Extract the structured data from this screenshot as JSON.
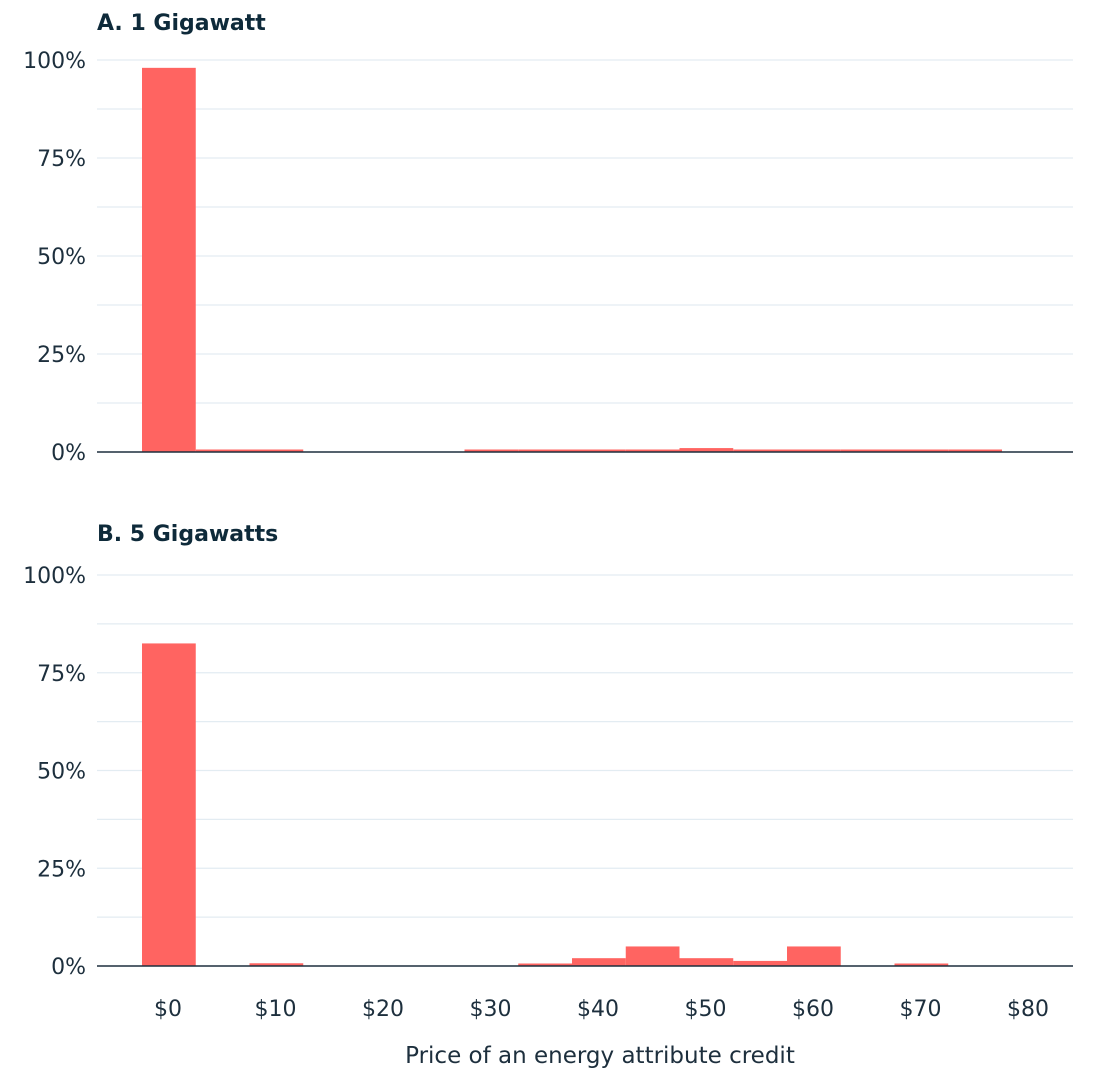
{
  "chart_data": [
    {
      "type": "bar",
      "title": "A. 1 Gigawatt",
      "bin_width": 5,
      "x": [
        0,
        5,
        10,
        15,
        20,
        25,
        30,
        35,
        40,
        45,
        50,
        55,
        60,
        65,
        70,
        75
      ],
      "values": [
        98,
        0.3,
        0.3,
        0,
        0,
        0,
        0.2,
        0.2,
        0.2,
        0.2,
        1.0,
        0.3,
        0.3,
        0.3,
        0.3,
        0.3
      ],
      "ylim": [
        0,
        100
      ],
      "yticks": [
        "0%",
        "25%",
        "50%",
        "75%",
        "100%"
      ],
      "color": "#ff6461",
      "grid": true
    },
    {
      "type": "bar",
      "title": "B. 5 Gigawatts",
      "bin_width": 5,
      "x": [
        0,
        5,
        10,
        15,
        20,
        25,
        30,
        35,
        40,
        45,
        50,
        55,
        60,
        65,
        70,
        75
      ],
      "values": [
        82.5,
        0,
        0.7,
        0,
        0,
        0,
        0,
        0.5,
        2.0,
        5.0,
        2.0,
        1.3,
        5.0,
        0,
        0.5,
        0
      ],
      "ylim": [
        0,
        100
      ],
      "yticks": [
        "0%",
        "25%",
        "50%",
        "75%",
        "100%"
      ],
      "color": "#ff6461",
      "grid": true
    }
  ],
  "shared_x_axis": {
    "ticks": [
      "$0",
      "$10",
      "$20",
      "$30",
      "$40",
      "$50",
      "$60",
      "$70",
      "$80"
    ],
    "tick_values": [
      0,
      10,
      20,
      30,
      40,
      50,
      60,
      70,
      80
    ],
    "xlabel": "Price of an energy attribute credit"
  }
}
